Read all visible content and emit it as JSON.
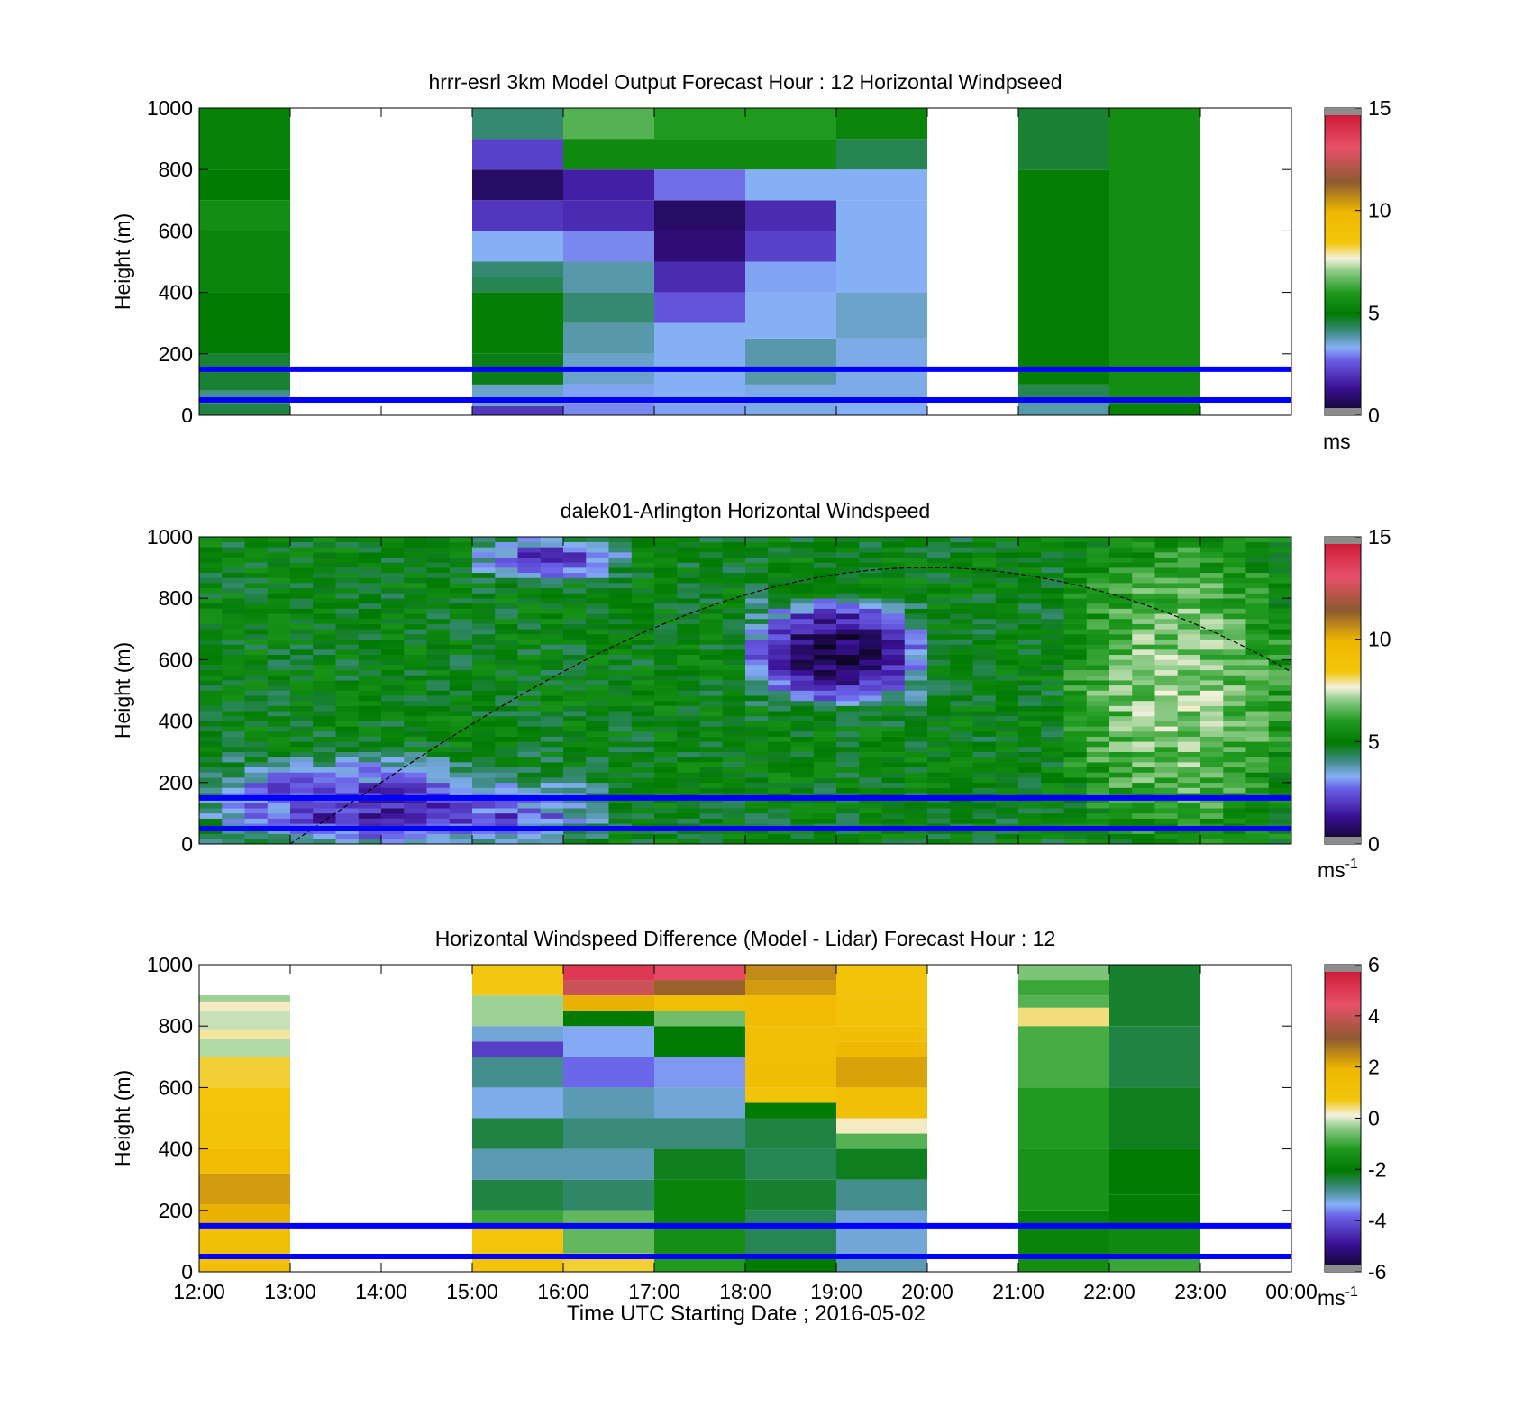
{
  "figure": {
    "x_axis_label": "Time UTC  Starting Date ; 2016-05-02",
    "x_tick_labels": [
      "12:00",
      "13:00",
      "14:00",
      "15:00",
      "16:00",
      "17:00",
      "18:00",
      "19:00",
      "20:00",
      "21:00",
      "22:00",
      "23:00",
      "00:00"
    ]
  },
  "chart_data": [
    {
      "type": "heatmap",
      "title": "hrrr-esrl 3km Model Output   Forecast Hour : 12 Horizontal Windpseed",
      "xlabel": "",
      "ylabel": "Height (m)",
      "xlim": [
        "12:00",
        "00:00"
      ],
      "ylim": [
        0,
        1000
      ],
      "y_ticks": [
        "0",
        "200",
        "400",
        "600",
        "800",
        "1000"
      ],
      "colorbar": {
        "label": "ms",
        "exponent": "",
        "range": [
          0,
          15
        ],
        "ticks": [
          "0",
          "5",
          "10",
          "15"
        ]
      },
      "reference_lines_m": [
        150,
        50
      ],
      "reference_line_color": "#0000ff",
      "grid": false,
      "columns": [
        {
          "hour": "12:00",
          "levels": [
            [
              40,
              4.5
            ],
            [
              80,
              4.0
            ],
            [
              200,
              4.6
            ],
            [
              400,
              5.0
            ],
            [
              600,
              5.3
            ],
            [
              700,
              5.6
            ],
            [
              800,
              5.0
            ],
            [
              1000,
              5.2
            ]
          ]
        },
        {
          "hour": "13:00",
          "levels": []
        },
        {
          "hour": "14:00",
          "levels": []
        },
        {
          "hour": "15:00",
          "levels": [
            [
              30,
              2.0
            ],
            [
              100,
              3.6
            ],
            [
              200,
              4.8
            ],
            [
              400,
              5.1
            ],
            [
              450,
              4.4
            ],
            [
              500,
              4.2
            ],
            [
              600,
              3.3
            ],
            [
              700,
              2.0
            ],
            [
              800,
              0.8
            ],
            [
              900,
              2.2
            ],
            [
              1000,
              4.2
            ]
          ]
        },
        {
          "hour": "16:00",
          "levels": [
            [
              40,
              3.0
            ],
            [
              100,
              3.2
            ],
            [
              200,
              3.6
            ],
            [
              300,
              3.8
            ],
            [
              400,
              4.2
            ],
            [
              500,
              3.8
            ],
            [
              600,
              3.0
            ],
            [
              700,
              1.8
            ],
            [
              800,
              1.6
            ],
            [
              900,
              5.5
            ],
            [
              1000,
              6.5
            ]
          ]
        },
        {
          "hour": "17:00",
          "levels": [
            [
              40,
              3.2
            ],
            [
              300,
              3.3
            ],
            [
              400,
              2.5
            ],
            [
              500,
              1.8
            ],
            [
              600,
              1.0
            ],
            [
              700,
              0.8
            ],
            [
              800,
              2.8
            ],
            [
              900,
              5.5
            ],
            [
              1000,
              6.0
            ]
          ]
        },
        {
          "hour": "18:00",
          "levels": [
            [
              100,
              3.4
            ],
            [
              250,
              3.8
            ],
            [
              400,
              3.3
            ],
            [
              500,
              3.2
            ],
            [
              600,
              2.2
            ],
            [
              700,
              1.8
            ],
            [
              800,
              3.3
            ],
            [
              900,
              5.5
            ],
            [
              1000,
              6.0
            ]
          ]
        },
        {
          "hour": "19:00",
          "levels": [
            [
              40,
              3.3
            ],
            [
              250,
              3.4
            ],
            [
              400,
              3.6
            ],
            [
              700,
              3.3
            ],
            [
              800,
              3.3
            ],
            [
              900,
              4.4
            ],
            [
              1000,
              5.3
            ]
          ]
        },
        {
          "hour": "20:00",
          "levels": []
        },
        {
          "hour": "21:00",
          "levels": [
            [
              40,
              3.8
            ],
            [
              100,
              4.4
            ],
            [
              800,
              5.1
            ],
            [
              1000,
              4.6
            ]
          ]
        },
        {
          "hour": "22:00",
          "levels": [
            [
              40,
              5.2
            ],
            [
              1000,
              5.6
            ]
          ]
        },
        {
          "hour": "23:00",
          "levels": []
        }
      ]
    },
    {
      "type": "heatmap",
      "title": "dalek01-Arlington  Horizontal Windspeed",
      "xlabel": "",
      "ylabel": "Height (m)",
      "xlim": [
        "12:00",
        "00:00"
      ],
      "ylim": [
        0,
        1000
      ],
      "y_ticks": [
        "0",
        "200",
        "400",
        "600",
        "800",
        "1000"
      ],
      "colorbar": {
        "label": "ms",
        "exponent": "-1",
        "range": [
          0,
          15
        ],
        "ticks": [
          "0",
          "5",
          "10",
          "15"
        ]
      },
      "reference_lines_m": [
        150,
        50
      ],
      "reference_line_color": "#0000ff",
      "overlay_curve": {
        "style": "dashed",
        "color": "#000000",
        "from_hour": "13:00",
        "peak_hour": "20:00",
        "peak_m": 900,
        "to_hour": "00:00",
        "end_m": 560
      },
      "grid": false,
      "features": [
        {
          "name": "low-level weak wind",
          "hours": [
            "12:00",
            "16:30"
          ],
          "heights_m": [
            0,
            300
          ],
          "speed_ms": 1.0
        },
        {
          "name": "moderate green band",
          "hours": [
            "12:00",
            "21:00"
          ],
          "heights_m": [
            100,
            1000
          ],
          "speed_ms": 5.0
        },
        {
          "name": "weak wind core",
          "hours": [
            "18:00",
            "20:00"
          ],
          "heights_m": [
            450,
            800
          ],
          "speed_ms": 0.5
        },
        {
          "name": "upper weak patch",
          "hours": [
            "15:00",
            "16:40"
          ],
          "heights_m": [
            850,
            1000
          ],
          "speed_ms": 2.0
        },
        {
          "name": "stronger mixed layer",
          "hours": [
            "21:30",
            "00:00"
          ],
          "heights_m": [
            0,
            1000
          ],
          "speed_ms": 7.0
        }
      ]
    },
    {
      "type": "heatmap",
      "title": "Horizontal Windspeed Difference (Model - Lidar) Forecast Hour : 12",
      "xlabel": "Time UTC  Starting Date ; 2016-05-02",
      "ylabel": "Height (m)",
      "xlim": [
        "12:00",
        "00:00"
      ],
      "ylim": [
        0,
        1000
      ],
      "y_ticks": [
        "0",
        "200",
        "400",
        "600",
        "800",
        "1000"
      ],
      "colorbar": {
        "label": "ms",
        "exponent": "-1",
        "range": [
          -6,
          6
        ],
        "ticks": [
          "-6",
          "-4",
          "-2",
          "0",
          "2",
          "4",
          "6"
        ]
      },
      "reference_lines_m": [
        150,
        50
      ],
      "reference_line_color": "#0000ff",
      "grid": false,
      "columns": [
        {
          "hour": "12:00",
          "levels": [
            [
              30,
              1.5
            ],
            [
              150,
              1.3
            ],
            [
              220,
              2.0
            ],
            [
              320,
              2.3
            ],
            [
              400,
              1.6
            ],
            [
              500,
              1.0
            ],
            [
              600,
              0.8
            ],
            [
              700,
              0.6
            ],
            [
              760,
              -0.2
            ],
            [
              790,
              0.3
            ],
            [
              850,
              -0.1
            ],
            [
              880,
              0.2
            ],
            [
              900,
              -0.3
            ]
          ]
        },
        {
          "hour": "13:00",
          "levels": []
        },
        {
          "hour": "14:00",
          "levels": []
        },
        {
          "hour": "15:00",
          "levels": [
            [
              50,
              1.0
            ],
            [
              150,
              0.8
            ],
            [
              200,
              -1.0
            ],
            [
              300,
              -2.4
            ],
            [
              400,
              -3.0
            ],
            [
              500,
              -2.4
            ],
            [
              600,
              -3.3
            ],
            [
              700,
              -2.8
            ],
            [
              750,
              -4.3
            ],
            [
              800,
              -3.2
            ],
            [
              900,
              -0.3
            ],
            [
              1000,
              0.7
            ]
          ]
        },
        {
          "hour": "16:00",
          "levels": [
            [
              60,
              0.6
            ],
            [
              200,
              -0.7
            ],
            [
              300,
              -2.6
            ],
            [
              400,
              -3.0
            ],
            [
              500,
              -2.7
            ],
            [
              600,
              -3.0
            ],
            [
              700,
              -3.8
            ],
            [
              800,
              -3.4
            ],
            [
              850,
              -2.0
            ],
            [
              900,
              2.0
            ],
            [
              950,
              4.0
            ],
            [
              1000,
              5.0
            ]
          ]
        },
        {
          "hour": "17:00",
          "levels": [
            [
              50,
              -1.2
            ],
            [
              150,
              -1.5
            ],
            [
              300,
              -1.8
            ],
            [
              400,
              -2.2
            ],
            [
              500,
              -2.7
            ],
            [
              600,
              -3.2
            ],
            [
              700,
              -3.5
            ],
            [
              800,
              -2.0
            ],
            [
              850,
              -0.6
            ],
            [
              900,
              1.3
            ],
            [
              950,
              3.0
            ],
            [
              1000,
              4.6
            ]
          ]
        },
        {
          "hour": "18:00",
          "levels": [
            [
              50,
              -2.0
            ],
            [
              200,
              -2.5
            ],
            [
              300,
              -2.3
            ],
            [
              400,
              -2.5
            ],
            [
              500,
              -2.4
            ],
            [
              550,
              -2.0
            ],
            [
              600,
              1.0
            ],
            [
              700,
              1.4
            ],
            [
              800,
              1.2
            ],
            [
              900,
              1.6
            ],
            [
              950,
              2.3
            ],
            [
              1000,
              2.5
            ]
          ]
        },
        {
          "hour": "19:00",
          "levels": [
            [
              50,
              -3.0
            ],
            [
              200,
              -3.2
            ],
            [
              300,
              -2.8
            ],
            [
              400,
              -2.2
            ],
            [
              450,
              -0.8
            ],
            [
              500,
              0.2
            ],
            [
              600,
              1.2
            ],
            [
              700,
              2.2
            ],
            [
              750,
              1.8
            ],
            [
              800,
              1.4
            ],
            [
              900,
              1.1
            ],
            [
              1000,
              1.0
            ]
          ]
        },
        {
          "hour": "20:00",
          "levels": []
        },
        {
          "hour": "21:00",
          "levels": [
            [
              50,
              -1.5
            ],
            [
              200,
              -1.8
            ],
            [
              400,
              -1.4
            ],
            [
              600,
              -1.2
            ],
            [
              800,
              -0.9
            ],
            [
              860,
              0.4
            ],
            [
              900,
              -0.8
            ],
            [
              950,
              -1.0
            ],
            [
              1000,
              -0.5
            ]
          ]
        },
        {
          "hour": "22:00",
          "levels": [
            [
              50,
              -1.0
            ],
            [
              150,
              -1.6
            ],
            [
              250,
              -2.0
            ],
            [
              400,
              -2.0
            ],
            [
              600,
              -2.2
            ],
            [
              800,
              -2.4
            ],
            [
              1000,
              -2.3
            ]
          ]
        },
        {
          "hour": "23:00",
          "levels": []
        }
      ]
    }
  ]
}
